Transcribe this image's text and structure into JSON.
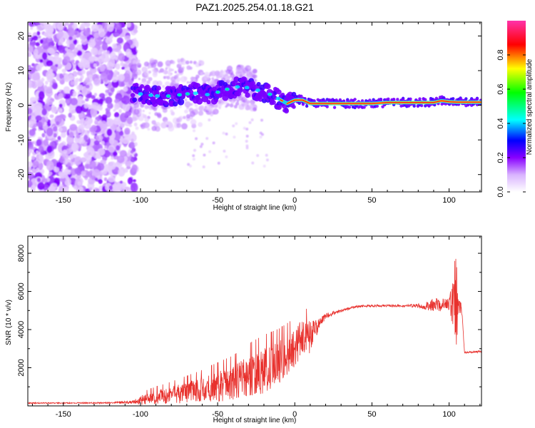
{
  "title": "PAZ1.2025.254.01.18.G21",
  "chart_data": [
    {
      "type": "heatmap",
      "xlabel": "Height of straight line (km)",
      "ylabel": "Frequency (Hz)",
      "xlim": [
        -173,
        121
      ],
      "ylim": [
        -25,
        24
      ],
      "xticks": [
        -150,
        -100,
        -50,
        0,
        50,
        100
      ],
      "yticks": [
        -20,
        -10,
        0,
        10,
        20
      ],
      "colorbar": {
        "label": "Normalized spectral amplitude",
        "ticks": [
          0.0,
          0.2,
          0.4,
          0.6,
          0.8
        ],
        "range": [
          0,
          1
        ],
        "colors": [
          "#ffffff",
          "#d9b3ff",
          "#8800ff",
          "#0000ff",
          "#00ffff",
          "#00ff00",
          "#ffff00",
          "#ff0000",
          "#ff33aa"
        ]
      },
      "ridge": {
        "x": [
          -105,
          -95,
          -85,
          -75,
          -65,
          -55,
          -45,
          -35,
          -25,
          -15,
          -5,
          0,
          5,
          10,
          20,
          30,
          40,
          50,
          60,
          70,
          80,
          90,
          95,
          100,
          105,
          110,
          121
        ],
        "y": [
          3.5,
          3.0,
          2.5,
          3.0,
          3.5,
          3.0,
          4.5,
          5.5,
          4.5,
          3.0,
          0.5,
          1.5,
          1.5,
          0.5,
          0.5,
          0.5,
          0.5,
          0.5,
          0.8,
          0.8,
          0.8,
          0.8,
          1.3,
          1.0,
          0.9,
          0.9,
          0.9
        ]
      }
    },
    {
      "type": "line",
      "xlabel": "Height of straight line (km)",
      "ylabel": "SNR (10 * v/v)",
      "xlim": [
        -173,
        121
      ],
      "ylim": [
        0,
        8900
      ],
      "xticks": [
        -150,
        -100,
        -50,
        0,
        50,
        100
      ],
      "yticks": [
        2000,
        4000,
        6000,
        8000
      ],
      "color": "#e8312d",
      "series_envelope": {
        "x": [
          -173,
          -150,
          -120,
          -105,
          -100,
          -90,
          -80,
          -70,
          -60,
          -50,
          -40,
          -30,
          -20,
          -10,
          0,
          5,
          10,
          15,
          20,
          30,
          40,
          50,
          60,
          70,
          80,
          90,
          95,
          100,
          103,
          104,
          105,
          106,
          108,
          110,
          121
        ],
        "mean": [
          150,
          150,
          160,
          200,
          300,
          450,
          550,
          700,
          850,
          1000,
          1200,
          1500,
          1800,
          2300,
          3000,
          3700,
          3600,
          4200,
          4700,
          5000,
          5200,
          5250,
          5250,
          5250,
          5250,
          5250,
          5300,
          5300,
          5400,
          3500,
          5200,
          5300,
          5200,
          2800,
          2850
        ],
        "amplitude": [
          30,
          30,
          40,
          80,
          250,
          350,
          450,
          550,
          650,
          800,
          900,
          1100,
          1200,
          1100,
          1000,
          900,
          900,
          300,
          150,
          80,
          60,
          60,
          60,
          60,
          100,
          400,
          350,
          300,
          1500,
          2500,
          2500,
          600,
          300,
          50,
          50
        ]
      }
    }
  ]
}
